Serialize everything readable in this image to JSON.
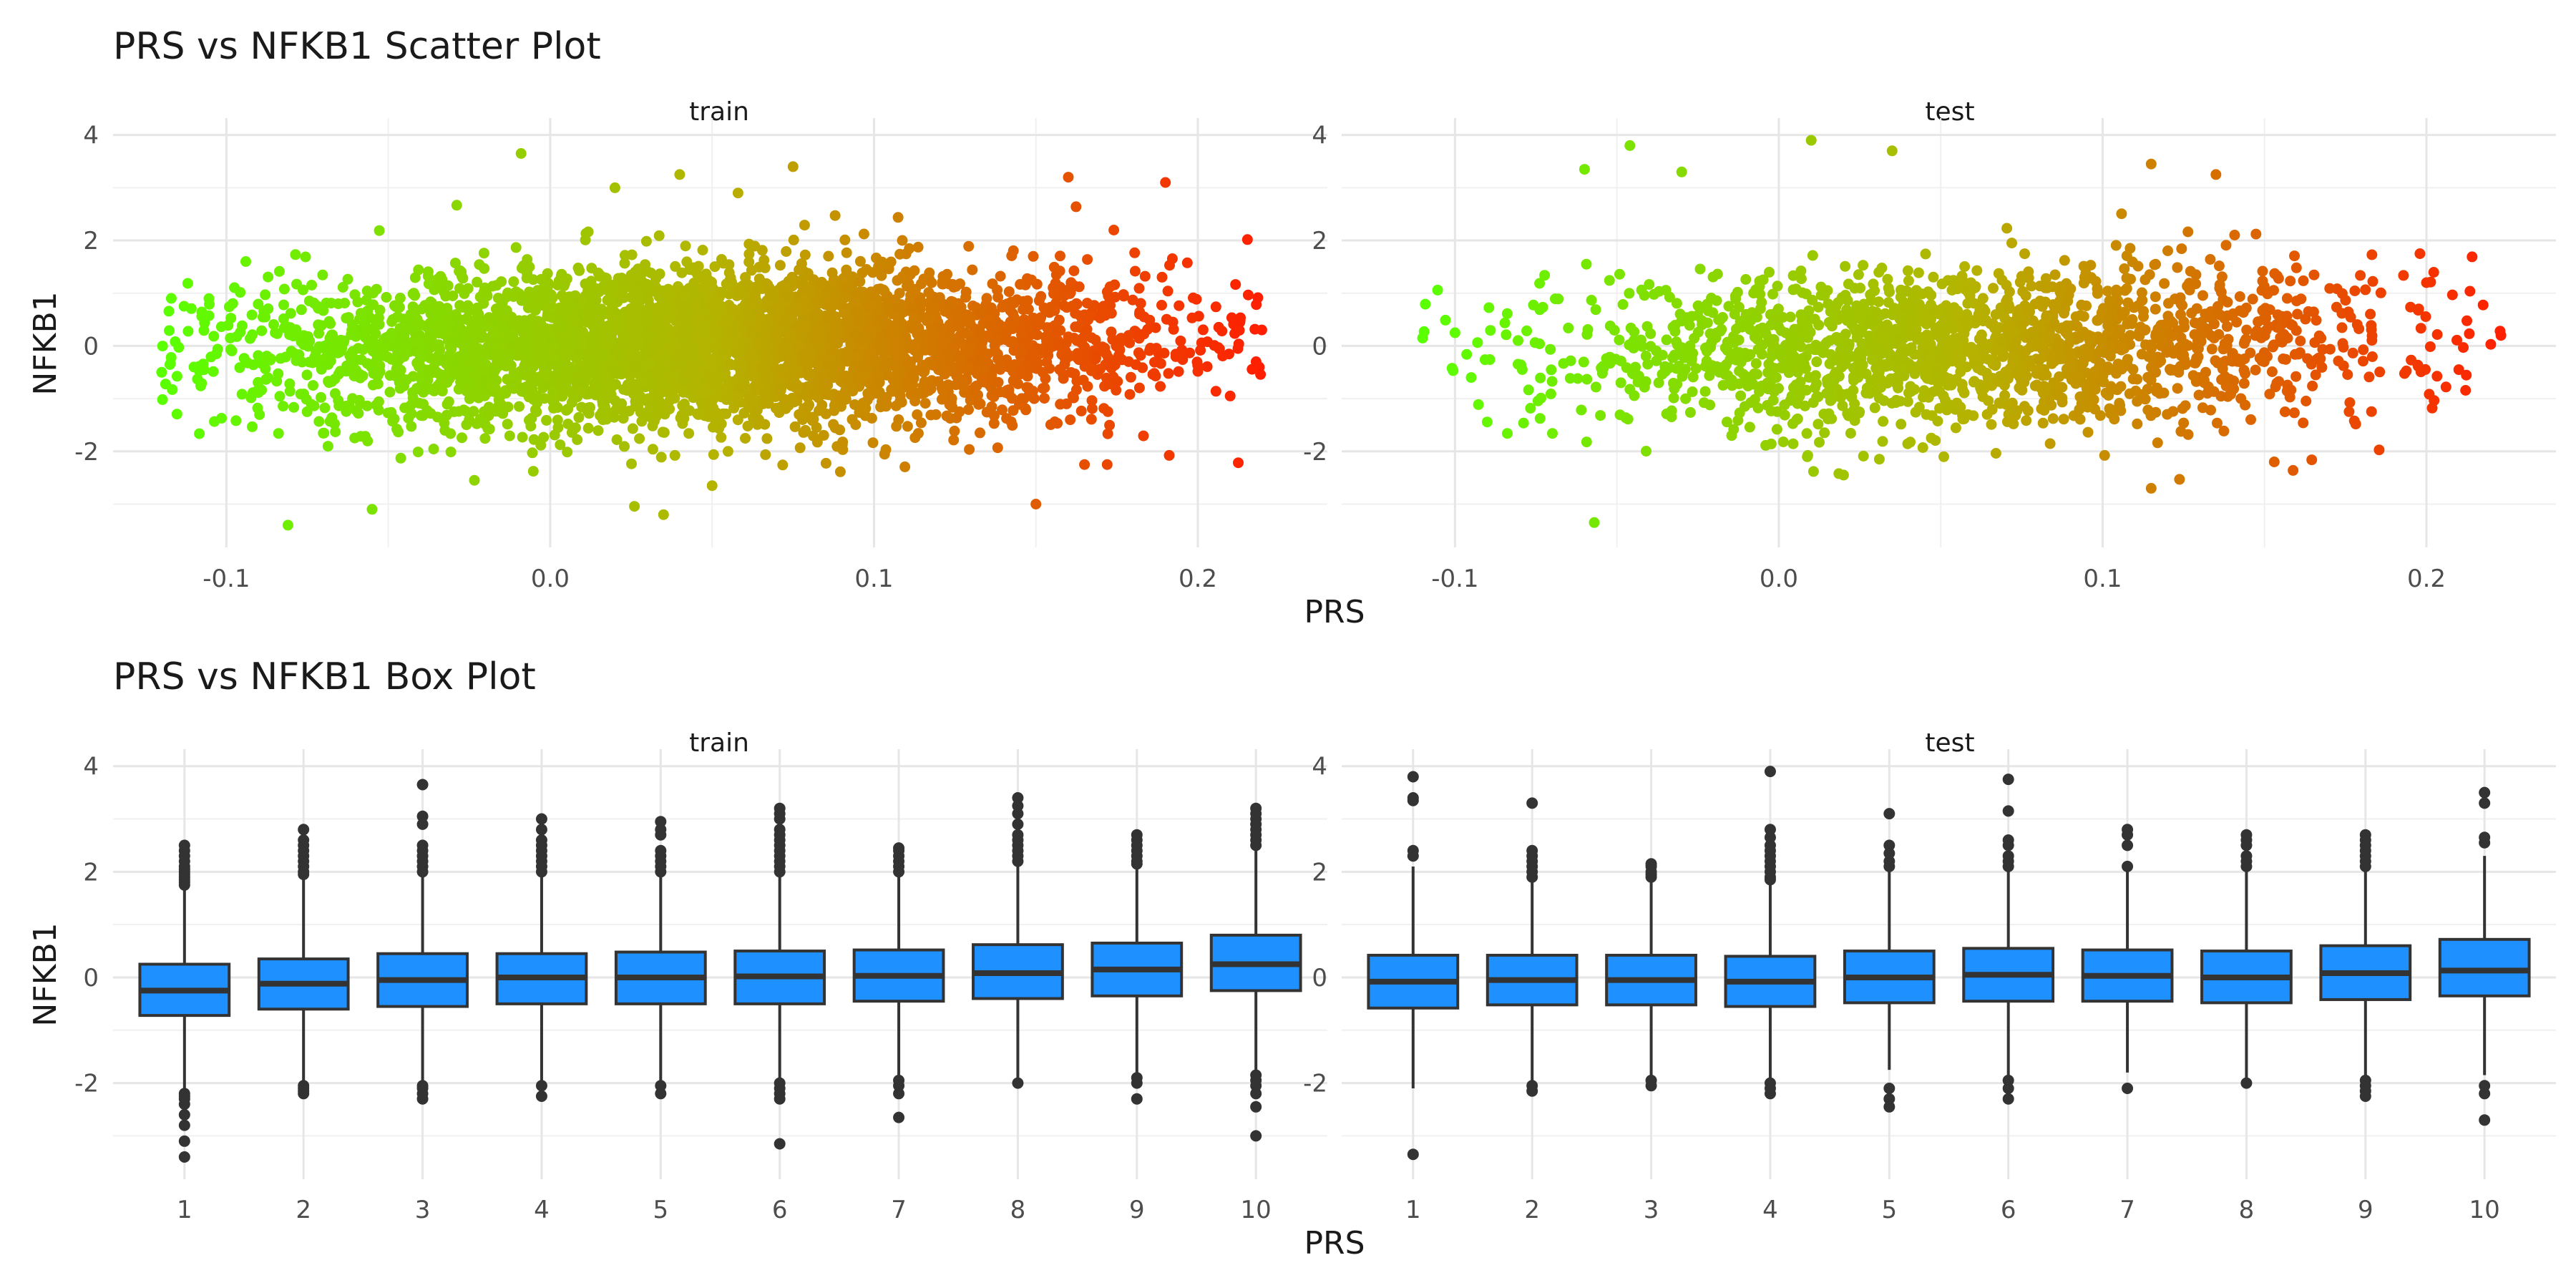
{
  "chart_data": [
    {
      "type": "scatter",
      "title": "PRS vs NFKB1 Scatter Plot",
      "xlabel": "PRS",
      "ylabel": "NFKB1",
      "grid": true,
      "legend": "none",
      "color_scale": {
        "low": "#5aff00",
        "mid": "#b4b400",
        "high": "#ff1e00"
      },
      "panels": [
        {
          "name": "train",
          "xlim": [
            -0.135,
            0.24
          ],
          "ylim": [
            -3.55,
            4.05
          ],
          "xticks": [
            -0.1,
            0.0,
            0.1,
            0.2
          ],
          "xtick_labels": [
            "-0.1",
            "0.0",
            "0.1",
            "0.2"
          ],
          "yticks": [
            -2,
            0,
            2,
            4
          ],
          "ytick_labels": [
            "-2",
            "0",
            "2",
            "4"
          ],
          "x_range": [
            -0.12,
            0.22
          ],
          "y_center": 0.0,
          "y_spread": 0.75,
          "n_points": 4200,
          "outliers": [
            [
              -0.12,
              -0.5
            ],
            [
              -0.081,
              -3.4
            ],
            [
              -0.055,
              -3.1
            ],
            [
              -0.009,
              3.65
            ],
            [
              0.035,
              -3.2
            ],
            [
              0.05,
              -2.65
            ],
            [
              0.075,
              3.4
            ],
            [
              0.15,
              -3.0
            ],
            [
              0.16,
              3.2
            ],
            [
              0.19,
              3.1
            ],
            [
              0.213,
              0.45
            ],
            [
              0.218,
              -0.3
            ],
            [
              0.21,
              -0.95
            ],
            [
              0.172,
              -2.25
            ],
            [
              0.165,
              -2.25
            ],
            [
              -0.094,
              1.6
            ],
            [
              -0.11,
              -0.4
            ],
            [
              0.02,
              3.0
            ],
            [
              0.04,
              3.25
            ],
            [
              0.058,
              2.9
            ]
          ]
        },
        {
          "name": "test",
          "xlim": [
            -0.135,
            0.24
          ],
          "ylim": [
            -3.55,
            4.05
          ],
          "xticks": [
            -0.1,
            0.0,
            0.1,
            0.2
          ],
          "xtick_labels": [
            "-0.1",
            "0.0",
            "0.1",
            "0.2"
          ],
          "yticks": [
            -2,
            0,
            2,
            4
          ],
          "ytick_labels": [
            "-2",
            "0",
            "2",
            "4"
          ],
          "x_range": [
            -0.11,
            0.225
          ],
          "y_center": 0.0,
          "y_spread": 0.75,
          "n_points": 1800,
          "outliers": [
            [
              -0.11,
              0.15
            ],
            [
              -0.057,
              -3.35
            ],
            [
              -0.046,
              3.8
            ],
            [
              -0.06,
              3.35
            ],
            [
              -0.03,
              3.3
            ],
            [
              0.01,
              3.9
            ],
            [
              0.035,
              3.7
            ],
            [
              0.115,
              3.45
            ],
            [
              0.135,
              3.25
            ],
            [
              0.115,
              -2.7
            ],
            [
              0.153,
              -2.2
            ],
            [
              0.223,
              0.2
            ],
            [
              0.21,
              -0.45
            ],
            [
              0.198,
              1.75
            ],
            [
              0.2,
              1.2
            ],
            [
              -0.1,
              0.25
            ],
            [
              -0.095,
              -0.6
            ],
            [
              0.02,
              -2.45
            ]
          ]
        }
      ]
    },
    {
      "type": "box",
      "title": "PRS vs NFKB1 Box Plot",
      "xlabel": "PRS",
      "ylabel": "NFKB1",
      "grid": true,
      "legend": "none",
      "box_color": "#1e90ff",
      "panels": [
        {
          "name": "train",
          "categories": [
            "1",
            "2",
            "3",
            "4",
            "5",
            "6",
            "7",
            "8",
            "9",
            "10"
          ],
          "ylim": [
            -3.55,
            4.05
          ],
          "yticks": [
            -2,
            0,
            2,
            4
          ],
          "ytick_labels": [
            "-2",
            "0",
            "2",
            "4"
          ],
          "boxes": [
            {
              "q1": -0.72,
              "median": -0.25,
              "q3": 0.25,
              "whisker_low": -2.15,
              "whisker_high": 1.7,
              "outliers": [
                1.75,
                1.8,
                1.85,
                1.9,
                1.95,
                2.0,
                2.05,
                2.1,
                2.2,
                2.3,
                2.4,
                2.5,
                -2.2,
                -2.25,
                -2.3,
                -2.4,
                -2.6,
                -2.8,
                -3.1,
                -3.4
              ]
            },
            {
              "q1": -0.6,
              "median": -0.12,
              "q3": 0.35,
              "whisker_low": -2.0,
              "whisker_high": 1.9,
              "outliers": [
                1.95,
                2.0,
                2.1,
                2.2,
                2.3,
                2.4,
                2.5,
                2.6,
                2.8,
                -2.05,
                -2.1,
                -2.15,
                -2.2
              ]
            },
            {
              "q1": -0.55,
              "median": -0.05,
              "q3": 0.45,
              "whisker_low": -2.0,
              "whisker_high": 1.95,
              "outliers": [
                2.0,
                2.1,
                2.2,
                2.3,
                2.4,
                2.5,
                2.9,
                3.05,
                3.65,
                -2.05,
                -2.1,
                -2.2,
                -2.3
              ]
            },
            {
              "q1": -0.5,
              "median": 0.0,
              "q3": 0.45,
              "whisker_low": -2.0,
              "whisker_high": 1.95,
              "outliers": [
                2.0,
                2.1,
                2.2,
                2.3,
                2.4,
                2.5,
                2.6,
                2.8,
                3.0,
                -2.05,
                -2.25
              ]
            },
            {
              "q1": -0.5,
              "median": 0.0,
              "q3": 0.48,
              "whisker_low": -2.0,
              "whisker_high": 1.95,
              "outliers": [
                2.0,
                2.1,
                2.2,
                2.3,
                2.4,
                2.7,
                2.8,
                2.95,
                -2.05,
                -2.2
              ]
            },
            {
              "q1": -0.5,
              "median": 0.02,
              "q3": 0.5,
              "whisker_low": -2.0,
              "whisker_high": 1.95,
              "outliers": [
                2.0,
                2.1,
                2.2,
                2.3,
                2.4,
                2.5,
                2.6,
                2.7,
                2.8,
                3.0,
                3.1,
                3.2,
                -2.0,
                -2.1,
                -2.2,
                -2.3,
                -3.15
              ]
            },
            {
              "q1": -0.45,
              "median": 0.03,
              "q3": 0.52,
              "whisker_low": -1.85,
              "whisker_high": 1.95,
              "outliers": [
                2.0,
                2.1,
                2.2,
                2.3,
                2.4,
                2.45,
                -1.95,
                -2.05,
                -2.2,
                -2.65
              ]
            },
            {
              "q1": -0.4,
              "median": 0.08,
              "q3": 0.62,
              "whisker_low": -1.95,
              "whisker_high": 2.15,
              "outliers": [
                2.2,
                2.3,
                2.4,
                2.5,
                2.6,
                2.7,
                2.9,
                3.1,
                3.25,
                3.4,
                -2.0
              ]
            },
            {
              "q1": -0.35,
              "median": 0.15,
              "q3": 0.65,
              "whisker_low": -1.85,
              "whisker_high": 2.1,
              "outliers": [
                2.15,
                2.2,
                2.3,
                2.4,
                2.5,
                2.6,
                2.7,
                -1.9,
                -2.0,
                -2.3
              ]
            },
            {
              "q1": -0.25,
              "median": 0.25,
              "q3": 0.8,
              "whisker_low": -1.8,
              "whisker_high": 2.4,
              "outliers": [
                2.5,
                2.6,
                2.7,
                2.8,
                2.9,
                3.0,
                3.1,
                3.2,
                -1.85,
                -1.95,
                -2.05,
                -2.2,
                -2.45,
                -3.0
              ]
            }
          ]
        },
        {
          "name": "test",
          "categories": [
            "1",
            "2",
            "3",
            "4",
            "5",
            "6",
            "7",
            "8",
            "9",
            "10"
          ],
          "ylim": [
            -3.55,
            4.05
          ],
          "yticks": [
            -2,
            0,
            2,
            4
          ],
          "ytick_labels": [
            "-2",
            "0",
            "2",
            "4"
          ],
          "boxes": [
            {
              "q1": -0.58,
              "median": -0.08,
              "q3": 0.42,
              "whisker_low": -2.1,
              "whisker_high": 2.1,
              "outliers": [
                2.3,
                2.4,
                3.35,
                3.4,
                3.8,
                -3.35
              ]
            },
            {
              "q1": -0.52,
              "median": -0.05,
              "q3": 0.42,
              "whisker_low": -2.0,
              "whisker_high": 1.85,
              "outliers": [
                1.9,
                2.0,
                2.1,
                2.2,
                2.3,
                2.4,
                3.3,
                -2.05,
                -2.15
              ]
            },
            {
              "q1": -0.52,
              "median": -0.05,
              "q3": 0.42,
              "whisker_low": -1.9,
              "whisker_high": 1.85,
              "outliers": [
                1.9,
                1.95,
                2.0,
                2.1,
                2.15,
                -1.95,
                -2.05
              ]
            },
            {
              "q1": -0.55,
              "median": -0.08,
              "q3": 0.4,
              "whisker_low": -1.95,
              "whisker_high": 1.8,
              "outliers": [
                1.85,
                1.9,
                2.0,
                2.1,
                2.2,
                2.3,
                2.4,
                2.5,
                2.65,
                2.8,
                3.9,
                -2.0,
                -2.1,
                -2.2
              ]
            },
            {
              "q1": -0.48,
              "median": 0.0,
              "q3": 0.5,
              "whisker_low": -1.75,
              "whisker_high": 2.0,
              "outliers": [
                2.1,
                2.2,
                2.35,
                2.5,
                3.1,
                -2.1,
                -2.3,
                -2.45
              ]
            },
            {
              "q1": -0.45,
              "median": 0.05,
              "q3": 0.55,
              "whisker_low": -1.85,
              "whisker_high": 2.0,
              "outliers": [
                2.1,
                2.2,
                2.3,
                2.5,
                2.6,
                3.15,
                3.75,
                -1.95,
                -2.1,
                -2.3
              ]
            },
            {
              "q1": -0.45,
              "median": 0.03,
              "q3": 0.52,
              "whisker_low": -1.8,
              "whisker_high": 2.0,
              "outliers": [
                2.1,
                2.5,
                2.7,
                2.8,
                -2.1
              ]
            },
            {
              "q1": -0.48,
              "median": 0.0,
              "q3": 0.5,
              "whisker_low": -1.95,
              "whisker_high": 2.0,
              "outliers": [
                2.1,
                2.2,
                2.3,
                2.5,
                2.6,
                2.7,
                -2.0
              ]
            },
            {
              "q1": -0.42,
              "median": 0.08,
              "q3": 0.6,
              "whisker_low": -1.85,
              "whisker_high": 2.05,
              "outliers": [
                2.1,
                2.2,
                2.3,
                2.4,
                2.5,
                2.6,
                2.7,
                -1.95,
                -2.05,
                -2.15,
                -2.25
              ]
            },
            {
              "q1": -0.35,
              "median": 0.13,
              "q3": 0.72,
              "whisker_low": -1.85,
              "whisker_high": 2.3,
              "outliers": [
                2.55,
                2.65,
                3.3,
                3.5,
                -2.05,
                -2.2,
                -2.7
              ]
            }
          ]
        }
      ]
    }
  ]
}
